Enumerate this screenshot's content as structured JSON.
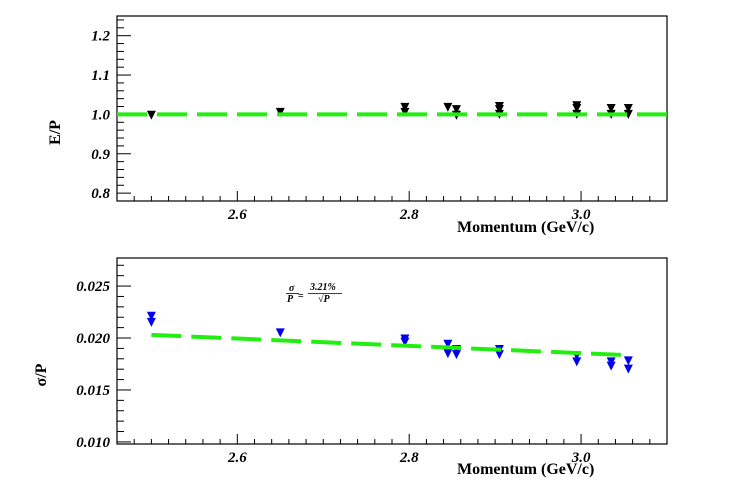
{
  "chart_data": [
    {
      "type": "scatter",
      "id": "ep",
      "ylabel": "E/P",
      "xlabel": "Momentum (GeV/c)",
      "xlim": [
        2.46,
        3.1
      ],
      "ylim": [
        0.78,
        1.25
      ],
      "x_ticks": [
        2.6,
        2.8,
        3.0
      ],
      "x_tick_labels": [
        "2.6",
        "2.8",
        "3.0"
      ],
      "y_ticks": [
        0.8,
        0.9,
        1.0,
        1.1,
        1.2
      ],
      "y_tick_labels": [
        "0.8",
        "0.9",
        "1.0",
        "1.1",
        "1.2"
      ],
      "marker_color": "#000000",
      "fit_color": "#22ee11",
      "fit": {
        "x": [
          2.46,
          3.1
        ],
        "y": [
          1.0,
          1.0
        ]
      },
      "points": [
        {
          "x": 2.5,
          "y": 0.998
        },
        {
          "x": 2.65,
          "y": 1.005
        },
        {
          "x": 2.795,
          "y": 1.018
        },
        {
          "x": 2.795,
          "y": 1.005
        },
        {
          "x": 2.845,
          "y": 1.018
        },
        {
          "x": 2.855,
          "y": 1.012
        },
        {
          "x": 2.855,
          "y": 0.998
        },
        {
          "x": 2.905,
          "y": 1.02
        },
        {
          "x": 2.905,
          "y": 1.012
        },
        {
          "x": 2.905,
          "y": 1.0
        },
        {
          "x": 2.995,
          "y": 1.022
        },
        {
          "x": 2.995,
          "y": 1.015
        },
        {
          "x": 2.995,
          "y": 1.0
        },
        {
          "x": 3.035,
          "y": 1.015
        },
        {
          "x": 3.035,
          "y": 1.0
        },
        {
          "x": 3.055,
          "y": 1.015
        },
        {
          "x": 3.055,
          "y": 1.0
        }
      ]
    },
    {
      "type": "scatter",
      "id": "sigma",
      "ylabel": "σ/P",
      "xlabel": "Momentum (GeV/c)",
      "xlim": [
        2.46,
        3.1
      ],
      "ylim": [
        0.0098,
        0.0277
      ],
      "x_ticks": [
        2.6,
        2.8,
        3.0
      ],
      "x_tick_labels": [
        "2.6",
        "2.8",
        "3.0"
      ],
      "y_ticks": [
        0.01,
        0.015,
        0.02,
        0.025
      ],
      "y_tick_labels": [
        "0.010",
        "0.015",
        "0.020",
        "0.025"
      ],
      "marker_color": "#0000ee",
      "fit_color": "#22ee11",
      "fit": {
        "x": [
          2.5,
          3.055
        ],
        "y": [
          0.0203,
          0.01835
        ]
      },
      "annotation": {
        "sigma": "σ",
        "p": "P",
        "value": "3.21%",
        "sqrt_p": "√P"
      },
      "points": [
        {
          "x": 2.5,
          "y": 0.0221
        },
        {
          "x": 2.5,
          "y": 0.0215
        },
        {
          "x": 2.65,
          "y": 0.0205
        },
        {
          "x": 2.795,
          "y": 0.0199
        },
        {
          "x": 2.795,
          "y": 0.0196
        },
        {
          "x": 2.845,
          "y": 0.0194
        },
        {
          "x": 2.845,
          "y": 0.0185
        },
        {
          "x": 2.855,
          "y": 0.0189
        },
        {
          "x": 2.855,
          "y": 0.0184
        },
        {
          "x": 2.905,
          "y": 0.0189
        },
        {
          "x": 2.905,
          "y": 0.0184
        },
        {
          "x": 2.995,
          "y": 0.0183
        },
        {
          "x": 2.995,
          "y": 0.0177
        },
        {
          "x": 3.035,
          "y": 0.0177
        },
        {
          "x": 3.035,
          "y": 0.0173
        },
        {
          "x": 3.055,
          "y": 0.0178
        },
        {
          "x": 3.055,
          "y": 0.017
        }
      ]
    }
  ]
}
